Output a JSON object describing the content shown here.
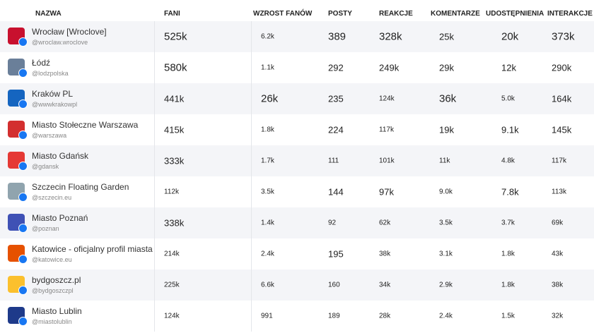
{
  "table": {
    "columns": [
      "NAZWA",
      "FANI",
      "WZROST FANÓW",
      "POSTY",
      "REAKCJE",
      "KOMENTARZE",
      "UDOSTĘPNIENIA",
      "INTERAKCJE"
    ],
    "rows": [
      {
        "name": "Wrocław [Wroclove]",
        "handle": "@wroclaw.wroclove",
        "cells": [
          "525k",
          "6.2k",
          "389",
          "328k",
          "25k",
          "20k",
          "373k"
        ]
      },
      {
        "name": "Łódź",
        "handle": "@lodzpolska",
        "cells": [
          "580k",
          "1.1k",
          "292",
          "249k",
          "29k",
          "12k",
          "290k"
        ]
      },
      {
        "name": "Kraków PL",
        "handle": "@wwwkrakowpl",
        "cells": [
          "441k",
          "26k",
          "235",
          "124k",
          "36k",
          "5.0k",
          "164k"
        ]
      },
      {
        "name": "Miasto Stołeczne Warszawa",
        "handle": "@warszawa",
        "cells": [
          "415k",
          "1.8k",
          "224",
          "117k",
          "19k",
          "9.1k",
          "145k"
        ]
      },
      {
        "name": "Miasto Gdańsk",
        "handle": "@gdansk",
        "cells": [
          "333k",
          "1.7k",
          "111",
          "101k",
          "11k",
          "4.8k",
          "117k"
        ]
      },
      {
        "name": "Szczecin Floating Garden",
        "handle": "@szczecin.eu",
        "cells": [
          "112k",
          "3.5k",
          "144",
          "97k",
          "9.0k",
          "7.8k",
          "113k"
        ]
      },
      {
        "name": "Miasto Poznań",
        "handle": "@poznan",
        "cells": [
          "338k",
          "1.4k",
          "92",
          "62k",
          "3.5k",
          "3.7k",
          "69k"
        ]
      },
      {
        "name": "Katowice - oficjalny profil miasta",
        "handle": "@katowice.eu",
        "cells": [
          "214k",
          "2.4k",
          "195",
          "38k",
          "3.1k",
          "1.8k",
          "43k"
        ]
      },
      {
        "name": "bydgoszcz.pl",
        "handle": "@bydgoszczpl",
        "cells": [
          "225k",
          "6.6k",
          "160",
          "34k",
          "2.9k",
          "1.8k",
          "38k"
        ]
      },
      {
        "name": "Miasto Lublin",
        "handle": "@miastolublin",
        "cells": [
          "124k",
          "991",
          "189",
          "28k",
          "2.4k",
          "1.5k",
          "32k"
        ]
      }
    ]
  }
}
